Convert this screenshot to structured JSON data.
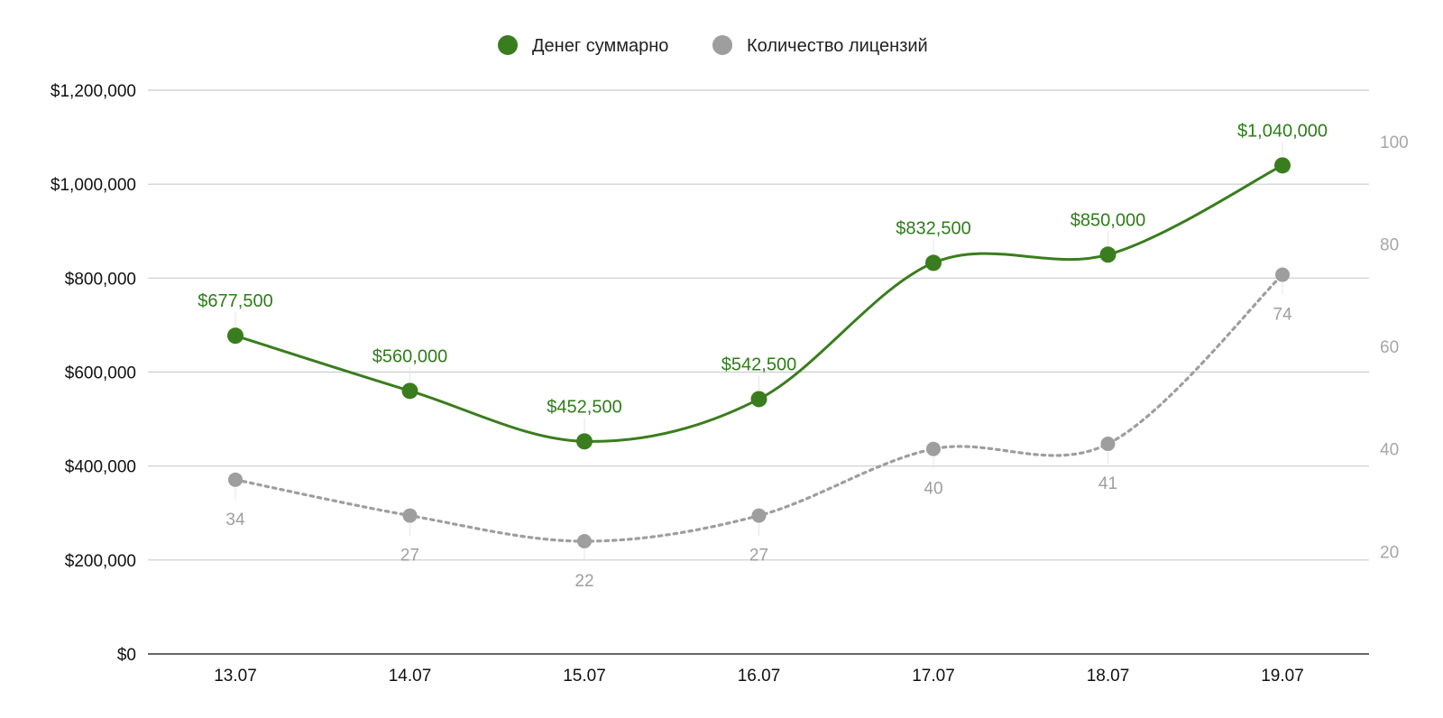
{
  "chart_data": {
    "type": "line",
    "categories": [
      "13.07",
      "14.07",
      "15.07",
      "16.07",
      "17.07",
      "18.07",
      "19.07"
    ],
    "series": [
      {
        "name": "Денег суммарно",
        "axis": "left",
        "color": "#3a7d1e",
        "line_style": "solid",
        "values": [
          677500,
          560000,
          452500,
          542500,
          832500,
          850000,
          1040000
        ],
        "labels": [
          "$677,500",
          "$560,000",
          "$452,500",
          "$542,500",
          "$832,500",
          "$850,000",
          "$1,040,000"
        ]
      },
      {
        "name": "Количество лицензий",
        "axis": "right",
        "color": "#9e9e9e",
        "line_style": "dotted",
        "values": [
          34,
          27,
          22,
          27,
          40,
          41,
          74
        ],
        "labels": [
          "34",
          "27",
          "22",
          "27",
          "40",
          "41",
          "74"
        ]
      }
    ],
    "y_left": {
      "range": [
        0,
        1200000
      ],
      "ticks": [
        0,
        200000,
        400000,
        600000,
        800000,
        1000000,
        1200000
      ],
      "tick_labels": [
        "$0",
        "$200,000",
        "$400,000",
        "$600,000",
        "$800,000",
        "$1,000,000",
        "$1,200,000"
      ]
    },
    "y_right": {
      "range": [
        0,
        110
      ],
      "ticks": [
        20,
        40,
        60,
        80,
        100
      ],
      "tick_labels": [
        "20",
        "40",
        "60",
        "80",
        "100"
      ]
    },
    "grid": true,
    "legend_position": "top-center",
    "curve": "smooth"
  }
}
